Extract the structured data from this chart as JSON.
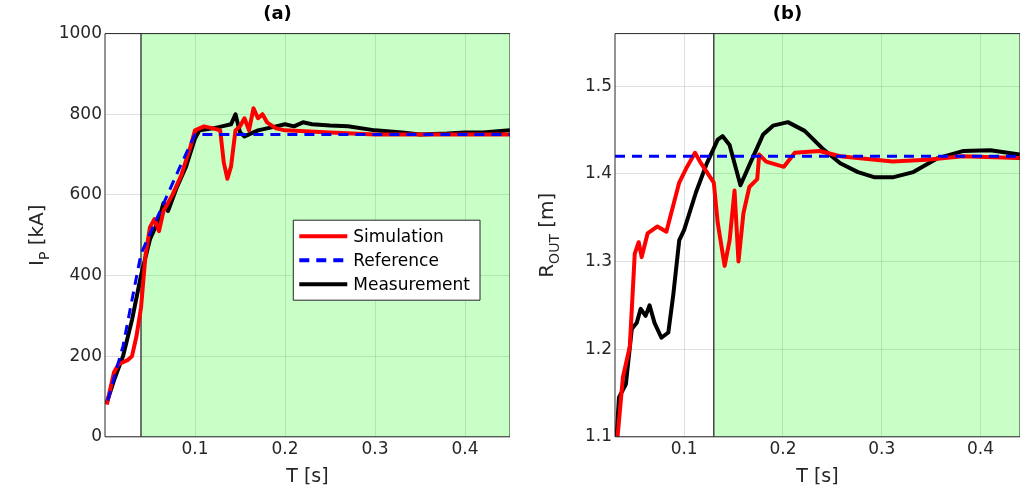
{
  "chart_data": [
    {
      "type": "line",
      "title": "(a)",
      "xlabel": "T [s]",
      "ylabel": "I$_{P}$ [kA]",
      "xlim": [
        0,
        0.45
      ],
      "xticks": [
        0.1,
        0.2,
        0.3,
        0.4
      ],
      "ylim": [
        0,
        1000
      ],
      "yticks": [
        0,
        200,
        400,
        600,
        800,
        1000
      ],
      "grid": true,
      "legend": "right",
      "bands": [
        {
          "axis": "x",
          "from": 0.04,
          "to": 0.45,
          "color": "#00ff00"
        }
      ],
      "ref_lines": [
        {
          "axis": "x",
          "value": 0.04,
          "color": "#444444"
        }
      ],
      "series": [
        {
          "name": "Simulation",
          "color": "#ff0000",
          "x": [
            0.002,
            0.01,
            0.015,
            0.02,
            0.025,
            0.03,
            0.035,
            0.04,
            0.045,
            0.05,
            0.055,
            0.06,
            0.065,
            0.075,
            0.085,
            0.095,
            0.1,
            0.11,
            0.12,
            0.128,
            0.132,
            0.136,
            0.14,
            0.145,
            0.15,
            0.155,
            0.16,
            0.165,
            0.17,
            0.175,
            0.18,
            0.19,
            0.2,
            0.25,
            0.3,
            0.35,
            0.4,
            0.45
          ],
          "values": [
            80,
            160,
            180,
            185,
            190,
            200,
            250,
            320,
            450,
            520,
            540,
            510,
            560,
            600,
            650,
            720,
            760,
            770,
            765,
            760,
            680,
            640,
            670,
            760,
            770,
            790,
            760,
            815,
            790,
            800,
            780,
            765,
            760,
            755,
            750,
            750,
            750,
            750
          ]
        },
        {
          "name": "Reference",
          "color": "#0000ff",
          "line_style": "dashed",
          "x": [
            0.003,
            0.02,
            0.04,
            0.083,
            0.1,
            0.45
          ],
          "values": [
            90,
            225,
            454,
            668,
            750,
            750
          ]
        },
        {
          "name": "Measurement",
          "color": "#000000",
          "x": [
            0.002,
            0.01,
            0.02,
            0.03,
            0.04,
            0.05,
            0.06,
            0.065,
            0.07,
            0.08,
            0.09,
            0.1,
            0.105,
            0.12,
            0.13,
            0.14,
            0.145,
            0.15,
            0.155,
            0.16,
            0.17,
            0.18,
            0.19,
            0.2,
            0.21,
            0.22,
            0.23,
            0.25,
            0.27,
            0.3,
            0.33,
            0.35,
            0.38,
            0.4,
            0.42,
            0.45
          ],
          "values": [
            85,
            140,
            200,
            290,
            400,
            490,
            540,
            580,
            560,
            620,
            670,
            740,
            760,
            765,
            770,
            775,
            800,
            755,
            745,
            750,
            760,
            765,
            770,
            775,
            770,
            780,
            775,
            772,
            770,
            760,
            755,
            750,
            752,
            755,
            755,
            760
          ]
        }
      ]
    },
    {
      "type": "line",
      "title": "(b)",
      "xlabel": "T [s]",
      "ylabel": "R$_{OUT}$ [m]",
      "xlim": [
        0.03,
        0.44
      ],
      "xticks": [
        0.1,
        0.2,
        0.3,
        0.4
      ],
      "ylim": [
        1.1,
        1.56
      ],
      "yticks": [
        1.1,
        1.2,
        1.3,
        1.4,
        1.5
      ],
      "grid": true,
      "bands": [
        {
          "axis": "x",
          "from": 0.13,
          "to": 0.44,
          "color": "#00ff00"
        }
      ],
      "ref_lines": [
        {
          "axis": "x",
          "value": 0.13,
          "color": "#444444"
        }
      ],
      "series": [
        {
          "color": "#ff0000",
          "x": [
            0.0326,
            0.038,
            0.045,
            0.05,
            0.054,
            0.057,
            0.063,
            0.073,
            0.082,
            0.095,
            0.102,
            0.111,
            0.116,
            0.13,
            0.134,
            0.141,
            0.146,
            0.151,
            0.155,
            0.16,
            0.166,
            0.174,
            0.176,
            0.183,
            0.201,
            0.212,
            0.237,
            0.258,
            0.311,
            0.346,
            0.382,
            0.44
          ],
          "values": [
            1.1,
            1.168,
            1.203,
            1.309,
            1.322,
            1.305,
            1.332,
            1.34,
            1.334,
            1.39,
            1.406,
            1.424,
            1.414,
            1.39,
            1.344,
            1.295,
            1.324,
            1.381,
            1.3,
            1.355,
            1.385,
            1.394,
            1.422,
            1.414,
            1.408,
            1.424,
            1.426,
            1.42,
            1.414,
            1.416,
            1.42,
            1.418
          ]
        },
        {
          "color": "#0000ff",
          "line_style": "dashed",
          "x": [
            0.03,
            0.44
          ],
          "values": [
            1.42,
            1.42
          ]
        },
        {
          "color": "#000000",
          "x": [
            0.0316,
            0.034,
            0.041,
            0.047,
            0.052,
            0.056,
            0.061,
            0.065,
            0.07,
            0.077,
            0.084,
            0.089,
            0.095,
            0.1,
            0.112,
            0.123,
            0.134,
            0.139,
            0.146,
            0.157,
            0.166,
            0.18,
            0.19,
            0.205,
            0.222,
            0.24,
            0.258,
            0.276,
            0.293,
            0.311,
            0.332,
            0.357,
            0.382,
            0.41,
            0.44
          ],
          "values": [
            1.1,
            1.145,
            1.16,
            1.223,
            1.23,
            1.246,
            1.238,
            1.25,
            1.23,
            1.213,
            1.219,
            1.262,
            1.324,
            1.336,
            1.379,
            1.412,
            1.439,
            1.443,
            1.433,
            1.387,
            1.41,
            1.445,
            1.455,
            1.459,
            1.449,
            1.429,
            1.412,
            1.402,
            1.396,
            1.396,
            1.402,
            1.418,
            1.426,
            1.427,
            1.422
          ]
        }
      ]
    }
  ]
}
